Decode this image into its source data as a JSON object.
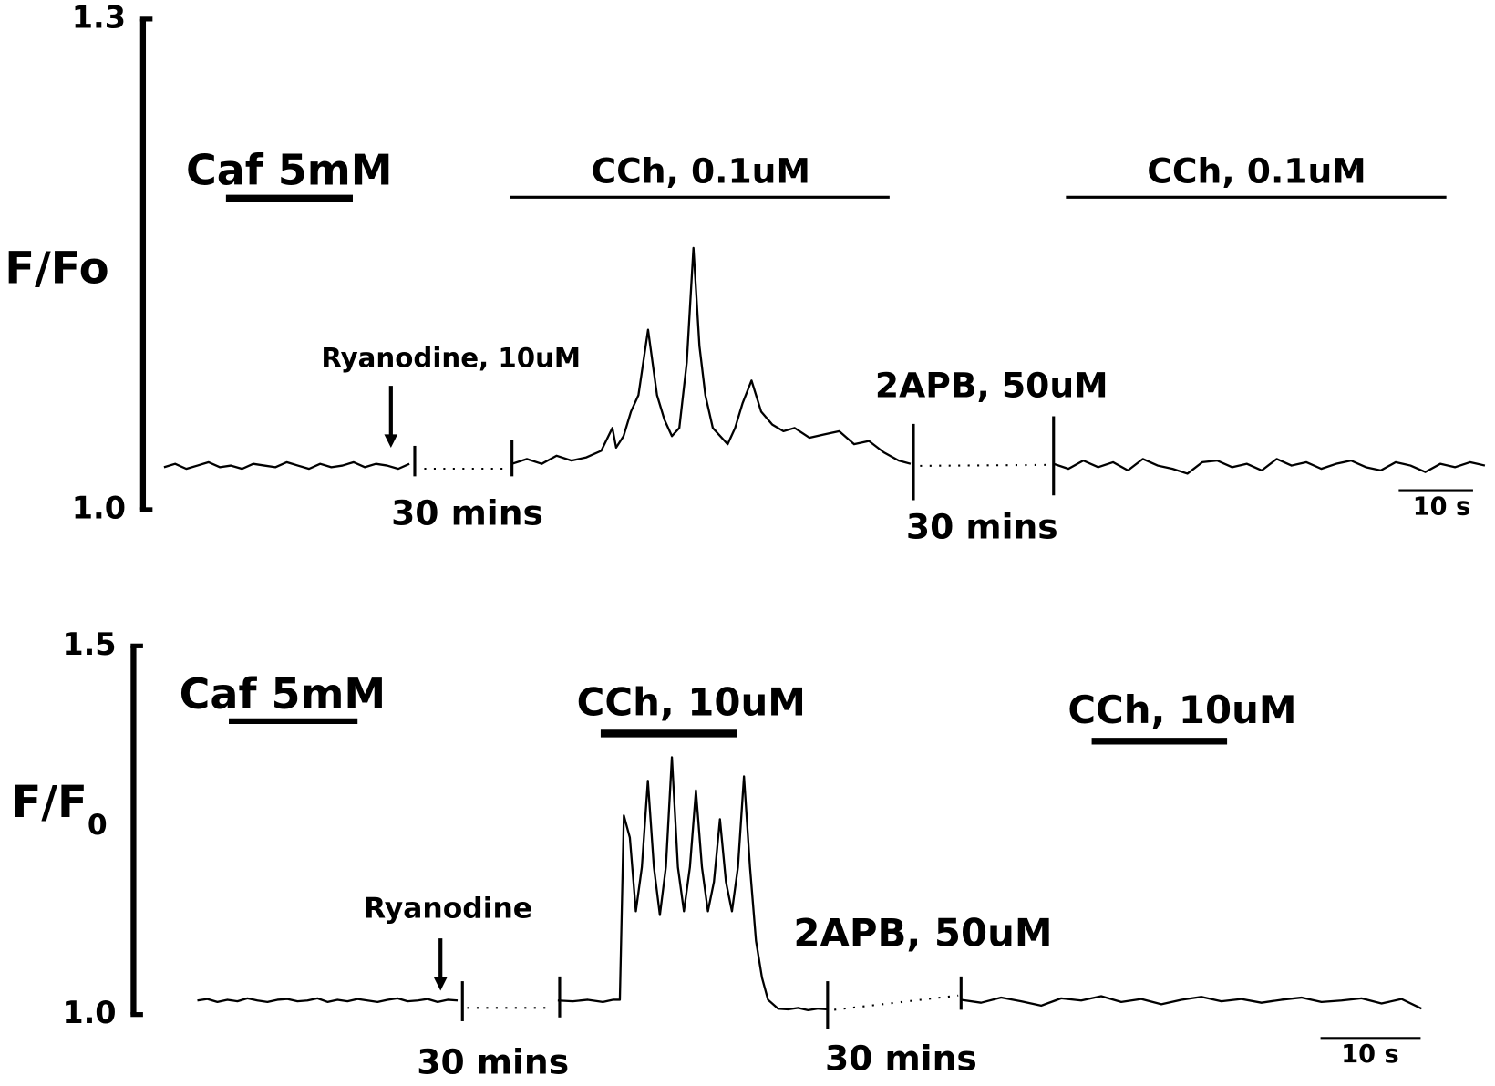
{
  "chart_data": [
    {
      "type": "line",
      "y_label": "F/Fo",
      "ylim": [
        1.0,
        1.3
      ],
      "yticks": [
        {
          "value": 1.0,
          "label": "1.0"
        },
        1.3
      ],
      "annotations": [
        "Caf 5mM",
        "CCh, 0.1uM",
        "CCh, 0.1uM",
        "Ryanodine, 10uM",
        "2APB, 50uM",
        "30 mins",
        "30 mins",
        "10 s"
      ],
      "series": [
        {
          "color": "#000000",
          "x": [
            0,
            1.5,
            3,
            4.5,
            6,
            7.5,
            9,
            10.5,
            12,
            13.5,
            15,
            16.5,
            18,
            19.5,
            21,
            22.5,
            24,
            25.5,
            27,
            28.5,
            30,
            31.5,
            33
          ],
          "values": [
            1.026,
            1.028,
            1.025,
            1.027,
            1.029,
            1.026,
            1.027,
            1.025,
            1.028,
            1.027,
            1.026,
            1.029,
            1.027,
            1.025,
            1.028,
            1.026,
            1.027,
            1.029,
            1.026,
            1.028,
            1.027,
            1.025,
            1.028
          ]
        },
        {
          "color": "#000000",
          "x": [
            0,
            2,
            4,
            6,
            8,
            10,
            12,
            13.5,
            14,
            15,
            16,
            17,
            18.3,
            19.5,
            20.5,
            21.5,
            22.5,
            23.5,
            24.4,
            25.2,
            26,
            27,
            28,
            29,
            30,
            31,
            32.2,
            33.5,
            35,
            36.5,
            38,
            40,
            42,
            44,
            46,
            48,
            50,
            52,
            53.6
          ],
          "values": [
            1.028,
            1.031,
            1.028,
            1.033,
            1.03,
            1.032,
            1.036,
            1.05,
            1.038,
            1.045,
            1.06,
            1.07,
            1.11,
            1.07,
            1.055,
            1.045,
            1.05,
            1.09,
            1.16,
            1.1,
            1.07,
            1.05,
            1.045,
            1.04,
            1.05,
            1.065,
            1.079,
            1.06,
            1.052,
            1.048,
            1.05,
            1.044,
            1.046,
            1.048,
            1.04,
            1.042,
            1.035,
            1.03,
            1.028
          ]
        },
        {
          "color": "#000000",
          "x": [
            0,
            2,
            4,
            6,
            8,
            10,
            12,
            14,
            16,
            18,
            20,
            22,
            24,
            26,
            28,
            30,
            32,
            34,
            36,
            38,
            40,
            42,
            44,
            46,
            48,
            50,
            52,
            54,
            56,
            58
          ],
          "values": [
            1.028,
            1.025,
            1.03,
            1.026,
            1.029,
            1.024,
            1.031,
            1.027,
            1.025,
            1.022,
            1.029,
            1.03,
            1.026,
            1.028,
            1.024,
            1.031,
            1.027,
            1.029,
            1.025,
            1.028,
            1.03,
            1.026,
            1.024,
            1.029,
            1.027,
            1.023,
            1.028,
            1.026,
            1.029,
            1.027
          ]
        }
      ]
    },
    {
      "type": "line",
      "y_label": "F/F",
      "y_label_sub": "0",
      "ylim": [
        1.0,
        1.5
      ],
      "yticks": [
        {
          "value": 1.0,
          "label": "1.0"
        },
        1.5
      ],
      "annotations": [
        "Caf 5mM",
        "CCh, 10uM",
        "CCh, 10uM",
        "Ryanodine",
        "2APB, 50uM",
        "30 mins",
        "30 mins",
        "10 s"
      ],
      "series": [
        {
          "color": "#000000",
          "x": [
            0,
            1,
            2,
            3,
            4,
            5,
            6,
            7,
            8,
            9,
            10,
            11,
            12,
            13,
            14,
            15,
            16,
            17,
            18,
            19,
            20,
            21,
            22,
            23,
            24,
            25,
            26
          ],
          "values": [
            1.019,
            1.021,
            1.017,
            1.02,
            1.018,
            1.022,
            1.019,
            1.017,
            1.02,
            1.021,
            1.018,
            1.019,
            1.022,
            1.017,
            1.02,
            1.018,
            1.021,
            1.019,
            1.017,
            1.02,
            1.022,
            1.018,
            1.019,
            1.021,
            1.017,
            1.02,
            1.019
          ]
        },
        {
          "color": "#000000",
          "x": [
            0,
            1.5,
            3,
            4.5,
            5.5,
            6.2,
            6.6,
            7.2,
            7.8,
            8.4,
            9.0,
            9.6,
            10.2,
            10.8,
            11.4,
            12,
            12.6,
            13.2,
            13.8,
            14.4,
            15,
            15.6,
            16.2,
            16.8,
            17.4,
            18,
            18.6,
            19.2,
            19.8,
            20.4,
            21,
            22,
            23,
            24,
            25,
            26,
            27
          ],
          "values": [
            1.019,
            1.018,
            1.02,
            1.017,
            1.02,
            1.02,
            1.27,
            1.24,
            1.14,
            1.2,
            1.317,
            1.2,
            1.135,
            1.2,
            1.349,
            1.2,
            1.14,
            1.2,
            1.304,
            1.2,
            1.14,
            1.18,
            1.265,
            1.18,
            1.14,
            1.2,
            1.323,
            1.2,
            1.1,
            1.05,
            1.02,
            1.008,
            1.007,
            1.009,
            1.006,
            1.008,
            1.007
          ]
        },
        {
          "color": "#000000",
          "x": [
            0,
            2,
            4,
            6,
            8,
            10,
            12,
            14,
            16,
            18,
            20,
            22,
            24,
            26,
            28,
            30,
            32,
            34,
            36,
            38,
            40,
            42,
            44,
            46
          ],
          "values": [
            1.02,
            1.016,
            1.023,
            1.018,
            1.012,
            1.022,
            1.019,
            1.025,
            1.017,
            1.021,
            1.014,
            1.02,
            1.024,
            1.018,
            1.021,
            1.016,
            1.02,
            1.023,
            1.017,
            1.019,
            1.022,
            1.015,
            1.021,
            1.008
          ]
        }
      ]
    }
  ]
}
